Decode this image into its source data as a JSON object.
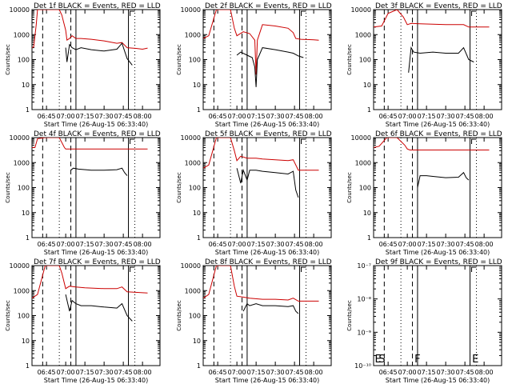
{
  "colors": {
    "events": "#000000",
    "lld": "#cc0000",
    "background": "#ffffff"
  },
  "chart_data": [
    {
      "type": "line",
      "title": "Det 1f BLACK = Events, RED = LLD",
      "xlabel": "Start Time (26-Aug-15 06:33:40)",
      "ylabel": "Counts/sec",
      "yscale": "log",
      "ylim": [
        1,
        10000
      ],
      "xlim": [
        "06:33:40",
        "08:13:40"
      ],
      "x_ticks": [
        "06:45",
        "07:00",
        "07:15",
        "07:30",
        "07:45",
        "08:00"
      ],
      "y_ticks": [
        "1",
        "10",
        "100",
        "1000",
        "10000"
      ],
      "marker_letters": [],
      "series": [
        {
          "name": "LLD",
          "color": "#cc0000",
          "x": [
            "06:33:40",
            "06:35",
            "06:37",
            "06:38",
            "06:40",
            "06:44",
            "06:55",
            "06:57",
            "07:00",
            "07:01",
            "07:03",
            "07:05",
            "07:08",
            "07:12",
            "07:20",
            "07:30",
            "07:40",
            "07:44",
            "07:48",
            "07:55",
            "08:00",
            "08:04"
          ],
          "y": [
            300,
            320,
            2500,
            10000,
            10000,
            10000,
            10000,
            6000,
            1500,
            600,
            700,
            900,
            700,
            700,
            650,
            560,
            450,
            480,
            300,
            280,
            260,
            290
          ]
        },
        {
          "name": "Events",
          "color": "#000000",
          "x": [
            "07:00",
            "07:01",
            "07:03",
            "07:05",
            "07:08",
            "07:12",
            "07:20",
            "07:30",
            "07:40",
            "07:44",
            "07:48",
            "07:52"
          ],
          "y": [
            300,
            80,
            400,
            300,
            250,
            300,
            250,
            220,
            260,
            450,
            110,
            60
          ]
        }
      ]
    },
    {
      "type": "line",
      "title": "Det 2f BLACK = Events, RED = LLD",
      "xlabel": "Start Time (26-Aug-15 06:33:40)",
      "ylabel": "Counts/sec",
      "yscale": "log",
      "ylim": [
        1,
        10000
      ],
      "xlim": [
        "06:33:40",
        "08:13:40"
      ],
      "x_ticks": [
        "06:45",
        "07:00",
        "07:15",
        "07:30",
        "07:45",
        "08:00"
      ],
      "y_ticks": [
        "1",
        "10",
        "100",
        "1000",
        "10000"
      ],
      "marker_letters": [],
      "series": [
        {
          "name": "LLD",
          "color": "#cc0000",
          "x": [
            "06:33:40",
            "06:38",
            "06:44",
            "06:55",
            "06:58",
            "07:00",
            "07:05",
            "07:10",
            "07:14",
            "07:15",
            "07:16",
            "07:20",
            "07:30",
            "07:40",
            "07:44",
            "07:46",
            "07:50",
            "08:00",
            "08:04"
          ],
          "y": [
            700,
            900,
            10000,
            10000,
            1800,
            900,
            1300,
            1100,
            600,
            25,
            600,
            2500,
            2200,
            1800,
            1200,
            700,
            650,
            620,
            600
          ]
        },
        {
          "name": "Events",
          "color": "#000000",
          "x": [
            "07:00",
            "07:03",
            "07:08",
            "07:12",
            "07:14",
            "07:15",
            "07:16",
            "07:20",
            "07:30",
            "07:40",
            "07:44",
            "07:48",
            "07:52"
          ],
          "y": [
            150,
            200,
            150,
            120,
            50,
            8,
            100,
            300,
            250,
            200,
            180,
            140,
            120
          ]
        }
      ]
    },
    {
      "type": "line",
      "title": "Det 3f BLACK = Events, RED = LLD",
      "xlabel": "Start Time (26-Aug-15 06:33:40)",
      "ylabel": "Counts/sec",
      "yscale": "log",
      "ylim": [
        1,
        10000
      ],
      "xlim": [
        "06:33:40",
        "08:13:40"
      ],
      "x_ticks": [
        "06:45",
        "07:00",
        "07:15",
        "07:30",
        "07:45",
        "08:00"
      ],
      "y_ticks": [
        "1",
        "10",
        "100",
        "1000",
        "10000"
      ],
      "marker_letters": [],
      "series": [
        {
          "name": "LLD",
          "color": "#cc0000",
          "x": [
            "06:33:40",
            "06:40",
            "06:45",
            "06:52",
            "06:57",
            "07:00",
            "07:03",
            "07:10",
            "07:20",
            "07:30",
            "07:40",
            "07:44",
            "07:48",
            "08:04"
          ],
          "y": [
            2000,
            2200,
            7000,
            10000,
            5000,
            2500,
            2800,
            2700,
            2600,
            2500,
            2500,
            2500,
            2000,
            2000
          ]
        },
        {
          "name": "Events",
          "color": "#000000",
          "x": [
            "07:01",
            "07:03",
            "07:05",
            "07:10",
            "07:20",
            "07:30",
            "07:40",
            "07:44",
            "07:48",
            "07:52"
          ],
          "y": [
            30,
            300,
            200,
            180,
            200,
            180,
            180,
            300,
            100,
            80
          ]
        }
      ]
    },
    {
      "type": "line",
      "title": "Det 4f BLACK = Events, RED = LLD",
      "xlabel": "Start Time (26-Aug-15 06:33:40)",
      "ylabel": "Counts/sec",
      "yscale": "log",
      "ylim": [
        1,
        10000
      ],
      "xlim": [
        "06:33:40",
        "08:13:40"
      ],
      "x_ticks": [
        "06:45",
        "07:00",
        "07:15",
        "07:30",
        "07:45",
        "08:00"
      ],
      "y_ticks": [
        "1",
        "10",
        "100",
        "1000",
        "10000"
      ],
      "marker_letters": [],
      "series": [
        {
          "name": "LLD",
          "color": "#cc0000",
          "x": [
            "06:33:40",
            "06:36",
            "06:38",
            "06:44",
            "06:55",
            "06:59",
            "07:00",
            "07:02",
            "07:10",
            "07:30",
            "07:50",
            "08:04"
          ],
          "y": [
            4000,
            4000,
            9000,
            10000,
            10000,
            4000,
            3500,
            3500,
            3500,
            3500,
            3500,
            3500
          ]
        },
        {
          "name": "Events",
          "color": "#000000",
          "x": [
            "07:04",
            "07:06",
            "07:10",
            "07:20",
            "07:30",
            "07:40",
            "07:44",
            "07:46",
            "07:48"
          ],
          "y": [
            500,
            600,
            550,
            500,
            500,
            520,
            600,
            400,
            300
          ]
        }
      ]
    },
    {
      "type": "line",
      "title": "Det 5f BLACK = Events, RED = LLD",
      "xlabel": "Start Time (26-Aug-15 06:33:40)",
      "ylabel": "Counts/sec",
      "yscale": "log",
      "ylim": [
        1,
        10000
      ],
      "xlim": [
        "06:33:40",
        "08:13:40"
      ],
      "x_ticks": [
        "06:45",
        "07:00",
        "07:15",
        "07:30",
        "07:45",
        "08:00"
      ],
      "y_ticks": [
        "1",
        "10",
        "100",
        "1000",
        "10000"
      ],
      "marker_letters": [],
      "series": [
        {
          "name": "LLD",
          "color": "#cc0000",
          "x": [
            "06:33:40",
            "06:38",
            "06:44",
            "06:55",
            "06:58",
            "07:00",
            "07:03",
            "07:08",
            "07:15",
            "07:20",
            "07:30",
            "07:40",
            "07:44",
            "07:48",
            "08:04"
          ],
          "y": [
            600,
            800,
            10000,
            10000,
            3000,
            1200,
            1800,
            1500,
            1500,
            1400,
            1300,
            1200,
            1300,
            500,
            500
          ]
        },
        {
          "name": "Events",
          "color": "#000000",
          "x": [
            "07:00",
            "07:03",
            "07:05",
            "07:08",
            "07:10",
            "07:15",
            "07:20",
            "07:30",
            "07:40",
            "07:44",
            "07:46",
            "07:48"
          ],
          "y": [
            600,
            150,
            500,
            200,
            500,
            500,
            450,
            400,
            350,
            450,
            80,
            40
          ]
        }
      ]
    },
    {
      "type": "line",
      "title": "Det 6f BLACK = Events, RED = LLD",
      "xlabel": "Start Time (26-Aug-15 06:33:40)",
      "ylabel": "Counts/sec",
      "yscale": "log",
      "ylim": [
        1,
        10000
      ],
      "xlim": [
        "06:33:40",
        "08:13:40"
      ],
      "x_ticks": [
        "06:45",
        "07:00",
        "07:15",
        "07:30",
        "07:45",
        "08:00"
      ],
      "y_ticks": [
        "1",
        "10",
        "100",
        "1000",
        "10000"
      ],
      "marker_letters": [],
      "series": [
        {
          "name": "LLD",
          "color": "#cc0000",
          "x": [
            "06:33:40",
            "06:38",
            "06:44",
            "06:52",
            "06:58",
            "07:00",
            "07:02",
            "07:10",
            "07:30",
            "07:50",
            "08:04"
          ],
          "y": [
            4000,
            4500,
            10000,
            10000,
            5000,
            3500,
            3200,
            3200,
            3200,
            3200,
            3200
          ]
        },
        {
          "name": "Events",
          "color": "#000000",
          "x": [
            "07:08",
            "07:10",
            "07:15",
            "07:20",
            "07:30",
            "07:40",
            "07:44",
            "07:46",
            "07:48"
          ],
          "y": [
            100,
            300,
            300,
            280,
            250,
            260,
            400,
            250,
            200
          ]
        }
      ]
    },
    {
      "type": "line",
      "title": "Det 7f BLACK = Events, RED = LLD",
      "xlabel": "Start Time (26-Aug-15 06:33:40)",
      "ylabel": "Counts/sec",
      "yscale": "log",
      "ylim": [
        1,
        10000
      ],
      "xlim": [
        "06:33:40",
        "08:13:40"
      ],
      "x_ticks": [
        "06:45",
        "07:00",
        "07:15",
        "07:30",
        "07:45",
        "08:00"
      ],
      "y_ticks": [
        "1",
        "10",
        "100",
        "1000",
        "10000"
      ],
      "marker_letters": [],
      "series": [
        {
          "name": "LLD",
          "color": "#cc0000",
          "x": [
            "06:33:40",
            "06:38",
            "06:44",
            "06:55",
            "06:57",
            "07:00",
            "07:03",
            "07:08",
            "07:15",
            "07:30",
            "07:40",
            "07:44",
            "07:48",
            "08:04"
          ],
          "y": [
            500,
            700,
            10000,
            10000,
            5000,
            1200,
            1500,
            1400,
            1300,
            1200,
            1200,
            1400,
            900,
            800
          ]
        },
        {
          "name": "Events",
          "color": "#000000",
          "x": [
            "07:00",
            "07:03",
            "07:05",
            "07:08",
            "07:12",
            "07:20",
            "07:30",
            "07:40",
            "07:44",
            "07:48",
            "07:52"
          ],
          "y": [
            700,
            150,
            400,
            300,
            250,
            250,
            220,
            200,
            300,
            100,
            60
          ]
        }
      ]
    },
    {
      "type": "line",
      "title": "Det 8f BLACK = Events, RED = LLD",
      "xlabel": "Start Time (26-Aug-15 06:33:40)",
      "ylabel": "Counts/sec",
      "yscale": "log",
      "ylim": [
        1,
        10000
      ],
      "xlim": [
        "06:33:40",
        "08:13:40"
      ],
      "x_ticks": [
        "06:45",
        "07:00",
        "07:15",
        "07:30",
        "07:45",
        "08:00"
      ],
      "y_ticks": [
        "1",
        "10",
        "100",
        "1000",
        "10000"
      ],
      "marker_letters": [],
      "series": [
        {
          "name": "LLD",
          "color": "#cc0000",
          "x": [
            "06:33:40",
            "06:38",
            "06:44",
            "06:55",
            "06:58",
            "07:00",
            "07:05",
            "07:10",
            "07:20",
            "07:30",
            "07:40",
            "07:44",
            "07:48",
            "08:04"
          ],
          "y": [
            500,
            700,
            10000,
            10000,
            1500,
            600,
            550,
            500,
            450,
            450,
            420,
            500,
            380,
            380
          ]
        },
        {
          "name": "Events",
          "color": "#000000",
          "x": [
            "07:05",
            "07:08",
            "07:10",
            "07:15",
            "07:20",
            "07:30",
            "07:40",
            "07:44",
            "07:46",
            "07:48"
          ],
          "y": [
            150,
            300,
            250,
            300,
            250,
            250,
            230,
            250,
            150,
            120
          ]
        }
      ]
    },
    {
      "type": "line",
      "title": "Det 9f BLACK = Events, RED = LLD",
      "xlabel": "Start Time (26-Aug-15 06:33:40)",
      "ylabel": "Counts/sec",
      "yscale": "log",
      "ylim": [
        1e-10,
        1e-07
      ],
      "xlim": [
        "06:33:40",
        "08:13:40"
      ],
      "x_ticks": [
        "06:45",
        "07:00",
        "07:15",
        "07:30",
        "07:45",
        "08:00"
      ],
      "y_ticks": [
        "10⁻¹⁰",
        "10⁻⁹",
        "10⁻⁸",
        "10⁻⁷"
      ],
      "marker_letters": [
        "E",
        "S",
        "F",
        "E"
      ],
      "series": []
    }
  ]
}
